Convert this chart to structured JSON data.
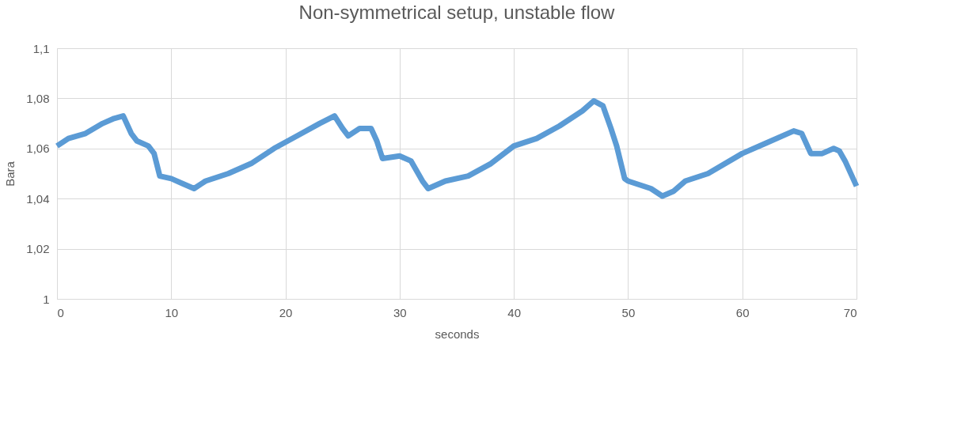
{
  "chart_data": {
    "type": "line",
    "title": "Non-symmetrical setup, unstable flow",
    "xlabel": "seconds",
    "ylabel": "Bara",
    "x": [
      0,
      1,
      2.5,
      4,
      5,
      5.8,
      6.5,
      7,
      8,
      8.5,
      9,
      10,
      11,
      12,
      13,
      15,
      17,
      19,
      21,
      23,
      24.3,
      25,
      25.5,
      26.5,
      27.5,
      28,
      28.5,
      30,
      31,
      32,
      32.5,
      34,
      36,
      38,
      40,
      42,
      44,
      46,
      47,
      47.8,
      48.5,
      49,
      49.7,
      50,
      52,
      53,
      54,
      55,
      57,
      60,
      62,
      64.5,
      65.2,
      66,
      67,
      68,
      68.5,
      69,
      70
    ],
    "series": [
      {
        "color": "#5b9bd5",
        "values": [
          1.061,
          1.064,
          1.066,
          1.07,
          1.072,
          1.073,
          1.066,
          1.063,
          1.061,
          1.058,
          1.049,
          1.048,
          1.046,
          1.044,
          1.047,
          1.05,
          1.054,
          1.06,
          1.065,
          1.07,
          1.073,
          1.068,
          1.065,
          1.068,
          1.068,
          1.063,
          1.056,
          1.057,
          1.055,
          1.047,
          1.044,
          1.047,
          1.049,
          1.054,
          1.061,
          1.064,
          1.069,
          1.075,
          1.079,
          1.077,
          1.068,
          1.061,
          1.048,
          1.047,
          1.044,
          1.041,
          1.043,
          1.047,
          1.05,
          1.058,
          1.062,
          1.067,
          1.066,
          1.058,
          1.058,
          1.06,
          1.059,
          1.055,
          1.045
        ]
      }
    ],
    "xlim": [
      0,
      70
    ],
    "xticks": [
      0,
      10,
      20,
      30,
      40,
      50,
      60,
      70
    ],
    "ylim": [
      1,
      1.1
    ],
    "yticks": [
      {
        "value": 1,
        "label": "1"
      },
      {
        "value": 1.02,
        "label": "1,02"
      },
      {
        "value": 1.04,
        "label": "1,04"
      },
      {
        "value": 1.06,
        "label": "1,06"
      },
      {
        "value": 1.08,
        "label": "1,08"
      },
      {
        "value": 1.1,
        "label": "1,1"
      }
    ],
    "grid": true,
    "legend": false,
    "marker": "none",
    "line_style": "solid"
  }
}
